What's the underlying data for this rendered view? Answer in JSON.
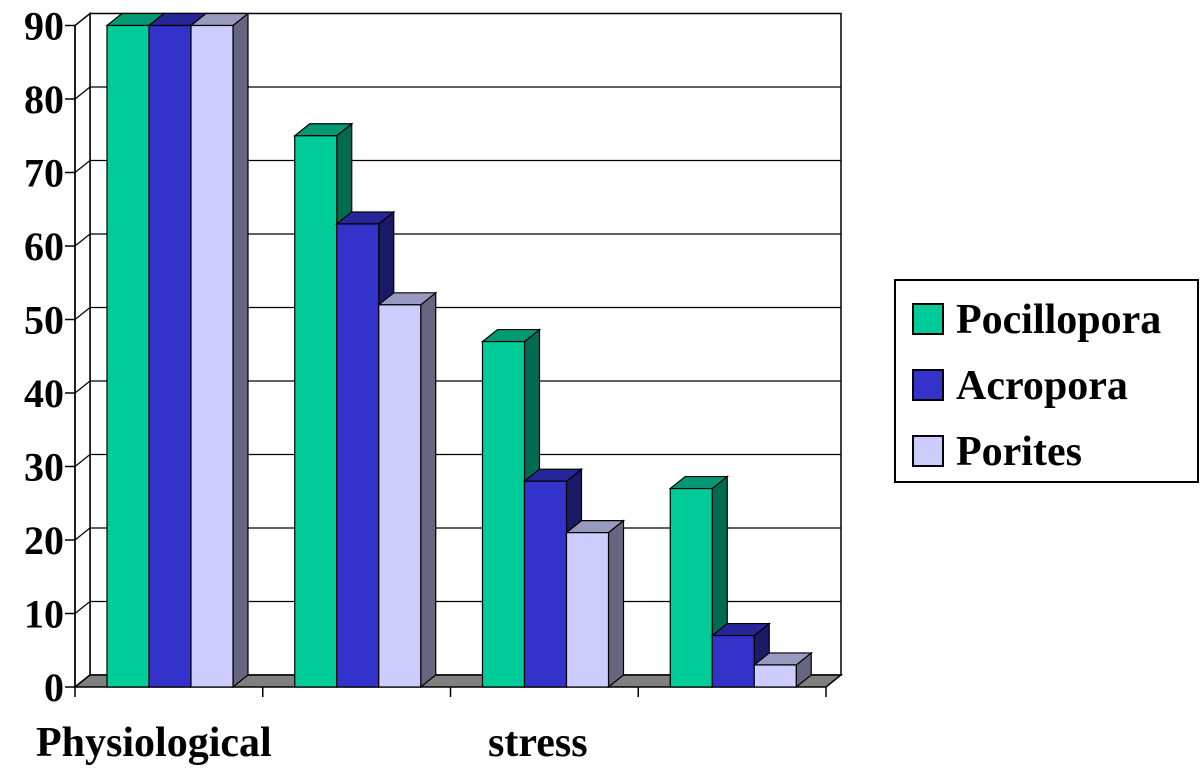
{
  "chart_data": {
    "type": "bar",
    "three_d": true,
    "categories": [
      "",
      "",
      "",
      ""
    ],
    "series": [
      {
        "name": "Pocillopora",
        "values": [
          90,
          75,
          47,
          27
        ],
        "color": "#00CC99",
        "side_color": "#006B50",
        "top_color": "#009973"
      },
      {
        "name": "Acropora",
        "values": [
          90,
          63,
          28,
          7
        ],
        "color": "#3333CC",
        "side_color": "#1A1A66",
        "top_color": "#262699"
      },
      {
        "name": "Porites",
        "values": [
          90,
          52,
          21,
          3
        ],
        "color": "#CCCCFF",
        "side_color": "#666680",
        "top_color": "#9999BF"
      }
    ],
    "ylim": [
      0,
      90
    ],
    "yticks": [
      "0",
      "10",
      "20",
      "30",
      "40",
      "50",
      "60",
      "70",
      "80",
      "90"
    ],
    "xlabel_parts": [
      "Physiological",
      "stress"
    ],
    "ylabel": "",
    "title": "",
    "grid": true,
    "legend_position": "right",
    "floor_color": "#808080"
  }
}
